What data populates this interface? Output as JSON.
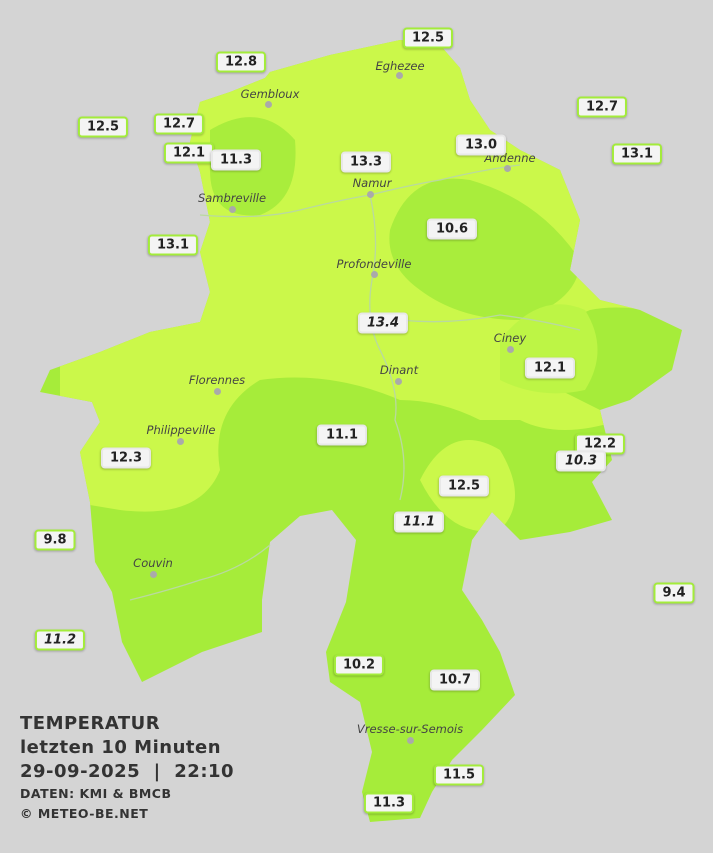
{
  "legend": {
    "title": "TEMPERATUR",
    "subtitle": "letzten 10 Minuten",
    "timestamp": "29-09-2025  |  22:10",
    "source": "DATEN: KMI & BMCB",
    "credit": "© METEO-BE.NET"
  },
  "cities": [
    "Eghezee",
    "Gembloux",
    "Andenne",
    "Namur",
    "Sambreville",
    "Profondeville",
    "Ciney",
    "Dinant",
    "Florennes",
    "Philippeville",
    "Couvin",
    "Vresse-sur-Semois"
  ],
  "stations": [
    "12.5",
    "12.8",
    "12.5",
    "12.7",
    "12.7",
    "12.1",
    "11.3",
    "13.3",
    "13.0",
    "13.1",
    "13.1",
    "10.6",
    "13.4",
    "12.1",
    "11.1",
    "12.2",
    "10.3",
    "12.3",
    "12.5",
    "11.1",
    "9.8",
    "9.4",
    "11.2",
    "10.2",
    "10.7",
    "11.5",
    "11.3"
  ]
}
